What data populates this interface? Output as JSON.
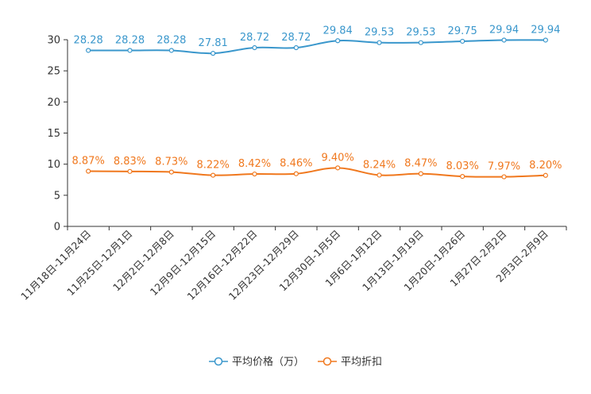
{
  "chart_data": {
    "type": "line",
    "categories": [
      "11月18日-11月24日",
      "11月25日-12月1日",
      "12月2日-12月8日",
      "12月9日-12月15日",
      "12月16日-12月22日",
      "12月23日-12月29日",
      "12月30日-1月5日",
      "1月6日-1月12日",
      "1月13日-1月19日",
      "1月20日-1月26日",
      "1月27日-2月2日",
      "2月3日-2月9日"
    ],
    "series": [
      {
        "name": "平均价格（万）",
        "color": "#3a97cc",
        "values": [
          28.28,
          28.28,
          28.28,
          27.81,
          28.72,
          28.72,
          29.84,
          29.53,
          29.53,
          29.75,
          29.94,
          29.94
        ],
        "labels": [
          "28.28",
          "28.28",
          "28.28",
          "27.81",
          "28.72",
          "28.72",
          "29.84",
          "29.53",
          "29.53",
          "29.75",
          "29.94",
          "29.94"
        ]
      },
      {
        "name": "平均折扣",
        "color": "#f0781e",
        "values": [
          8.87,
          8.83,
          8.73,
          8.22,
          8.42,
          8.46,
          9.4,
          8.24,
          8.47,
          8.03,
          7.97,
          8.2
        ],
        "labels": [
          "8.87%",
          "8.83%",
          "8.73%",
          "8.22%",
          "8.42%",
          "8.46%",
          "9.40%",
          "8.24%",
          "8.47%",
          "8.03%",
          "7.97%",
          "8.20%"
        ]
      }
    ],
    "yticks": [
      "0",
      "5",
      "10",
      "15",
      "20",
      "25",
      "30"
    ],
    "ylim": [
      0,
      30
    ],
    "legend_position": "bottom-center"
  }
}
